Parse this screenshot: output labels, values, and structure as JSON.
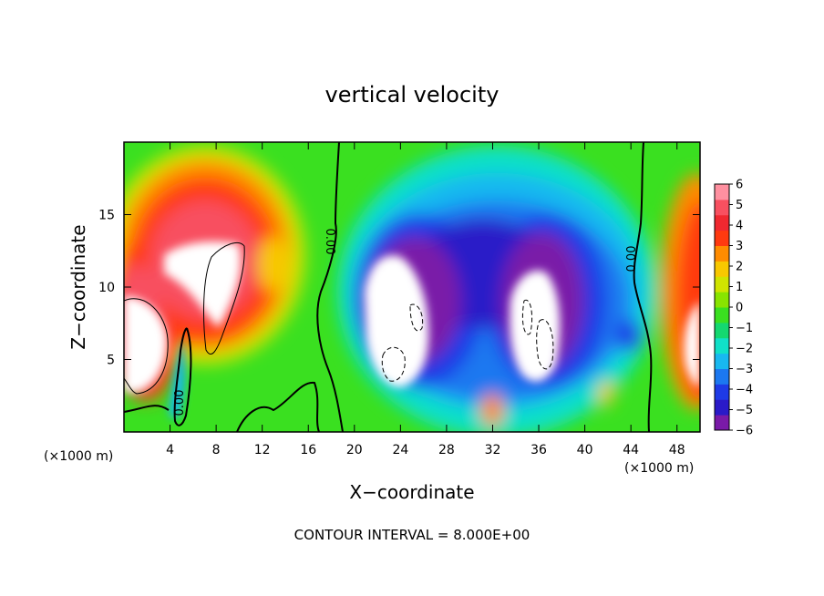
{
  "chart_data": {
    "type": "heatmap",
    "title": "vertical velocity",
    "xlabel": "X−coordinate",
    "ylabel": "Z−coordinate",
    "x_unit_label": "(×1000 m)",
    "x_unit_label_right": "(×1000 m)",
    "xlim": [
      0,
      50
    ],
    "ylim": [
      0,
      20
    ],
    "x_ticks": [
      4,
      8,
      12,
      16,
      20,
      24,
      28,
      32,
      36,
      40,
      44,
      48
    ],
    "x_tick_labels": [
      "4",
      "8",
      "12",
      "16",
      "20",
      "24",
      "28",
      "32",
      "36",
      "40",
      "44",
      "48"
    ],
    "y_ticks": [
      5,
      10,
      15
    ],
    "y_tick_labels": [
      "5",
      "10",
      "15"
    ],
    "colorbar": {
      "min": -6,
      "max": 6,
      "ticks": [
        6,
        5,
        4,
        3,
        2,
        1,
        0,
        -1,
        -2,
        -3,
        -4,
        -5,
        -6
      ],
      "tick_labels": [
        "6",
        "5",
        "4",
        "3",
        "2",
        "1",
        "0",
        "−1",
        "−2",
        "−3",
        "−4",
        "−5",
        "−6"
      ],
      "colors": [
        "#7a1aa8",
        "#2a1ac8",
        "#1e3ae6",
        "#1c78f0",
        "#18b8f0",
        "#10e0c8",
        "#14d870",
        "#3ae020",
        "#88e400",
        "#d0e400",
        "#f8c800",
        "#ff8c00",
        "#ff3a10",
        "#f02830",
        "#f85060",
        "#ff90a0"
      ]
    },
    "contour_labels": [
      "0.00",
      "0.00",
      "0.00"
    ],
    "note": "CONTOUR INTERVAL = 8.000E+00"
  }
}
